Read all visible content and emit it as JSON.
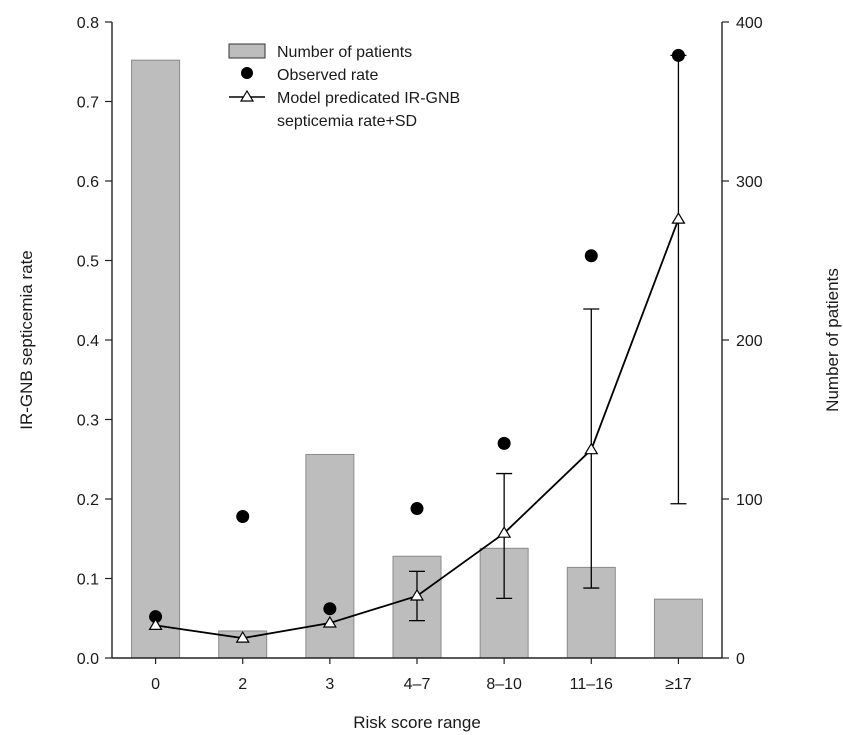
{
  "chart_data": {
    "type": "bar",
    "title": "",
    "categories": [
      "0",
      "2",
      "3",
      "4–7",
      "8–10",
      "11–16",
      "≥17"
    ],
    "xlabel": "Risk score range",
    "ylabel_left": "IR-GNB septicemia rate",
    "ylabel_right": "Number of patients",
    "ylim_left": [
      0,
      0.8
    ],
    "yticks_left": [
      "0.0",
      "0.1",
      "0.2",
      "0.3",
      "0.4",
      "0.5",
      "0.6",
      "0.7",
      "0.8"
    ],
    "ylim_right": [
      0,
      400
    ],
    "yticks_right": [
      "0",
      "100",
      "200",
      "300",
      "400"
    ],
    "grid": false,
    "legend_position": "top-center",
    "series": [
      {
        "name": "Number of patients",
        "kind": "bar",
        "axis": "right",
        "color": "#bdbdbd",
        "values": [
          376,
          17,
          128,
          64,
          69,
          57,
          37
        ]
      },
      {
        "name": "Observed rate",
        "kind": "scatter",
        "axis": "left",
        "marker": "filled-circle",
        "color": "#000000",
        "values": [
          0.052,
          0.178,
          0.062,
          0.188,
          0.27,
          0.506,
          0.758
        ]
      },
      {
        "name": "Model predicated IR-GNB septicemia rate+SD",
        "legend_lines": [
          "Model predicated IR-GNB",
          "septicemia rate+SD"
        ],
        "kind": "line",
        "axis": "left",
        "marker": "open-triangle",
        "color": "#000000",
        "values": [
          0.041,
          0.025,
          0.044,
          0.078,
          0.157,
          0.262,
          0.552
        ],
        "error_low": [
          0.041,
          0.025,
          0.044,
          0.047,
          0.075,
          0.088,
          0.194
        ],
        "error_high": [
          0.041,
          0.025,
          0.044,
          0.109,
          0.232,
          0.439,
          0.758
        ]
      }
    ]
  }
}
